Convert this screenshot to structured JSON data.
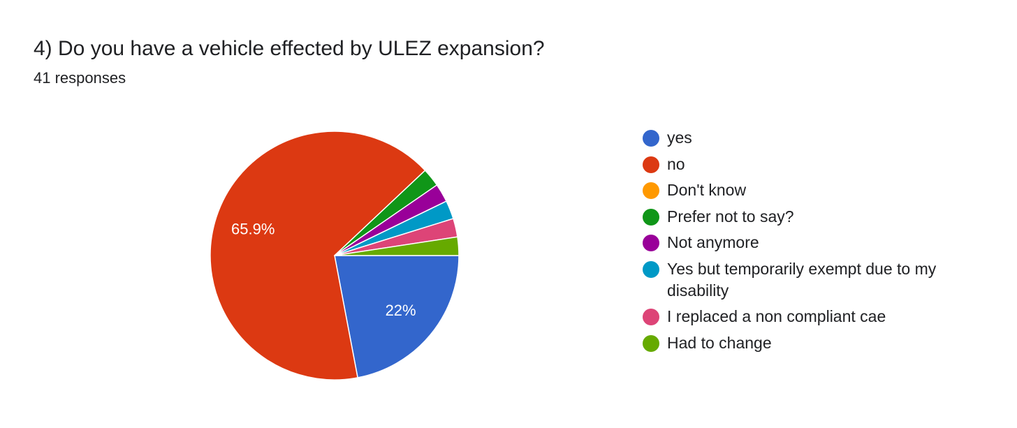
{
  "header": {
    "title": "4) Do you have a vehicle effected by ULEZ expansion?",
    "responses": "41 responses"
  },
  "chart_data": {
    "type": "pie",
    "slices": [
      {
        "label": "yes",
        "percent": 22,
        "data_label": "22%",
        "color": "#3366cc"
      },
      {
        "label": "no",
        "percent": 65.9,
        "data_label": "65.9%",
        "color": "#dc3912"
      },
      {
        "label": "Don't know",
        "percent": 0,
        "data_label": "",
        "color": "#ff9900"
      },
      {
        "label": "Prefer not to say?",
        "percent": 2.4,
        "data_label": "",
        "color": "#109618"
      },
      {
        "label": "Not anymore",
        "percent": 2.4,
        "data_label": "",
        "color": "#990099"
      },
      {
        "label": "Yes but temporarily exempt due to my disability",
        "percent": 2.4,
        "data_label": "",
        "color": "#0099c6"
      },
      {
        "label": "I replaced a non compliant cae",
        "percent": 2.4,
        "data_label": "",
        "color": "#dd4477"
      },
      {
        "label": "Had to change",
        "percent": 2.4,
        "data_label": "",
        "color": "#66aa00"
      }
    ],
    "legend_position": "right"
  }
}
